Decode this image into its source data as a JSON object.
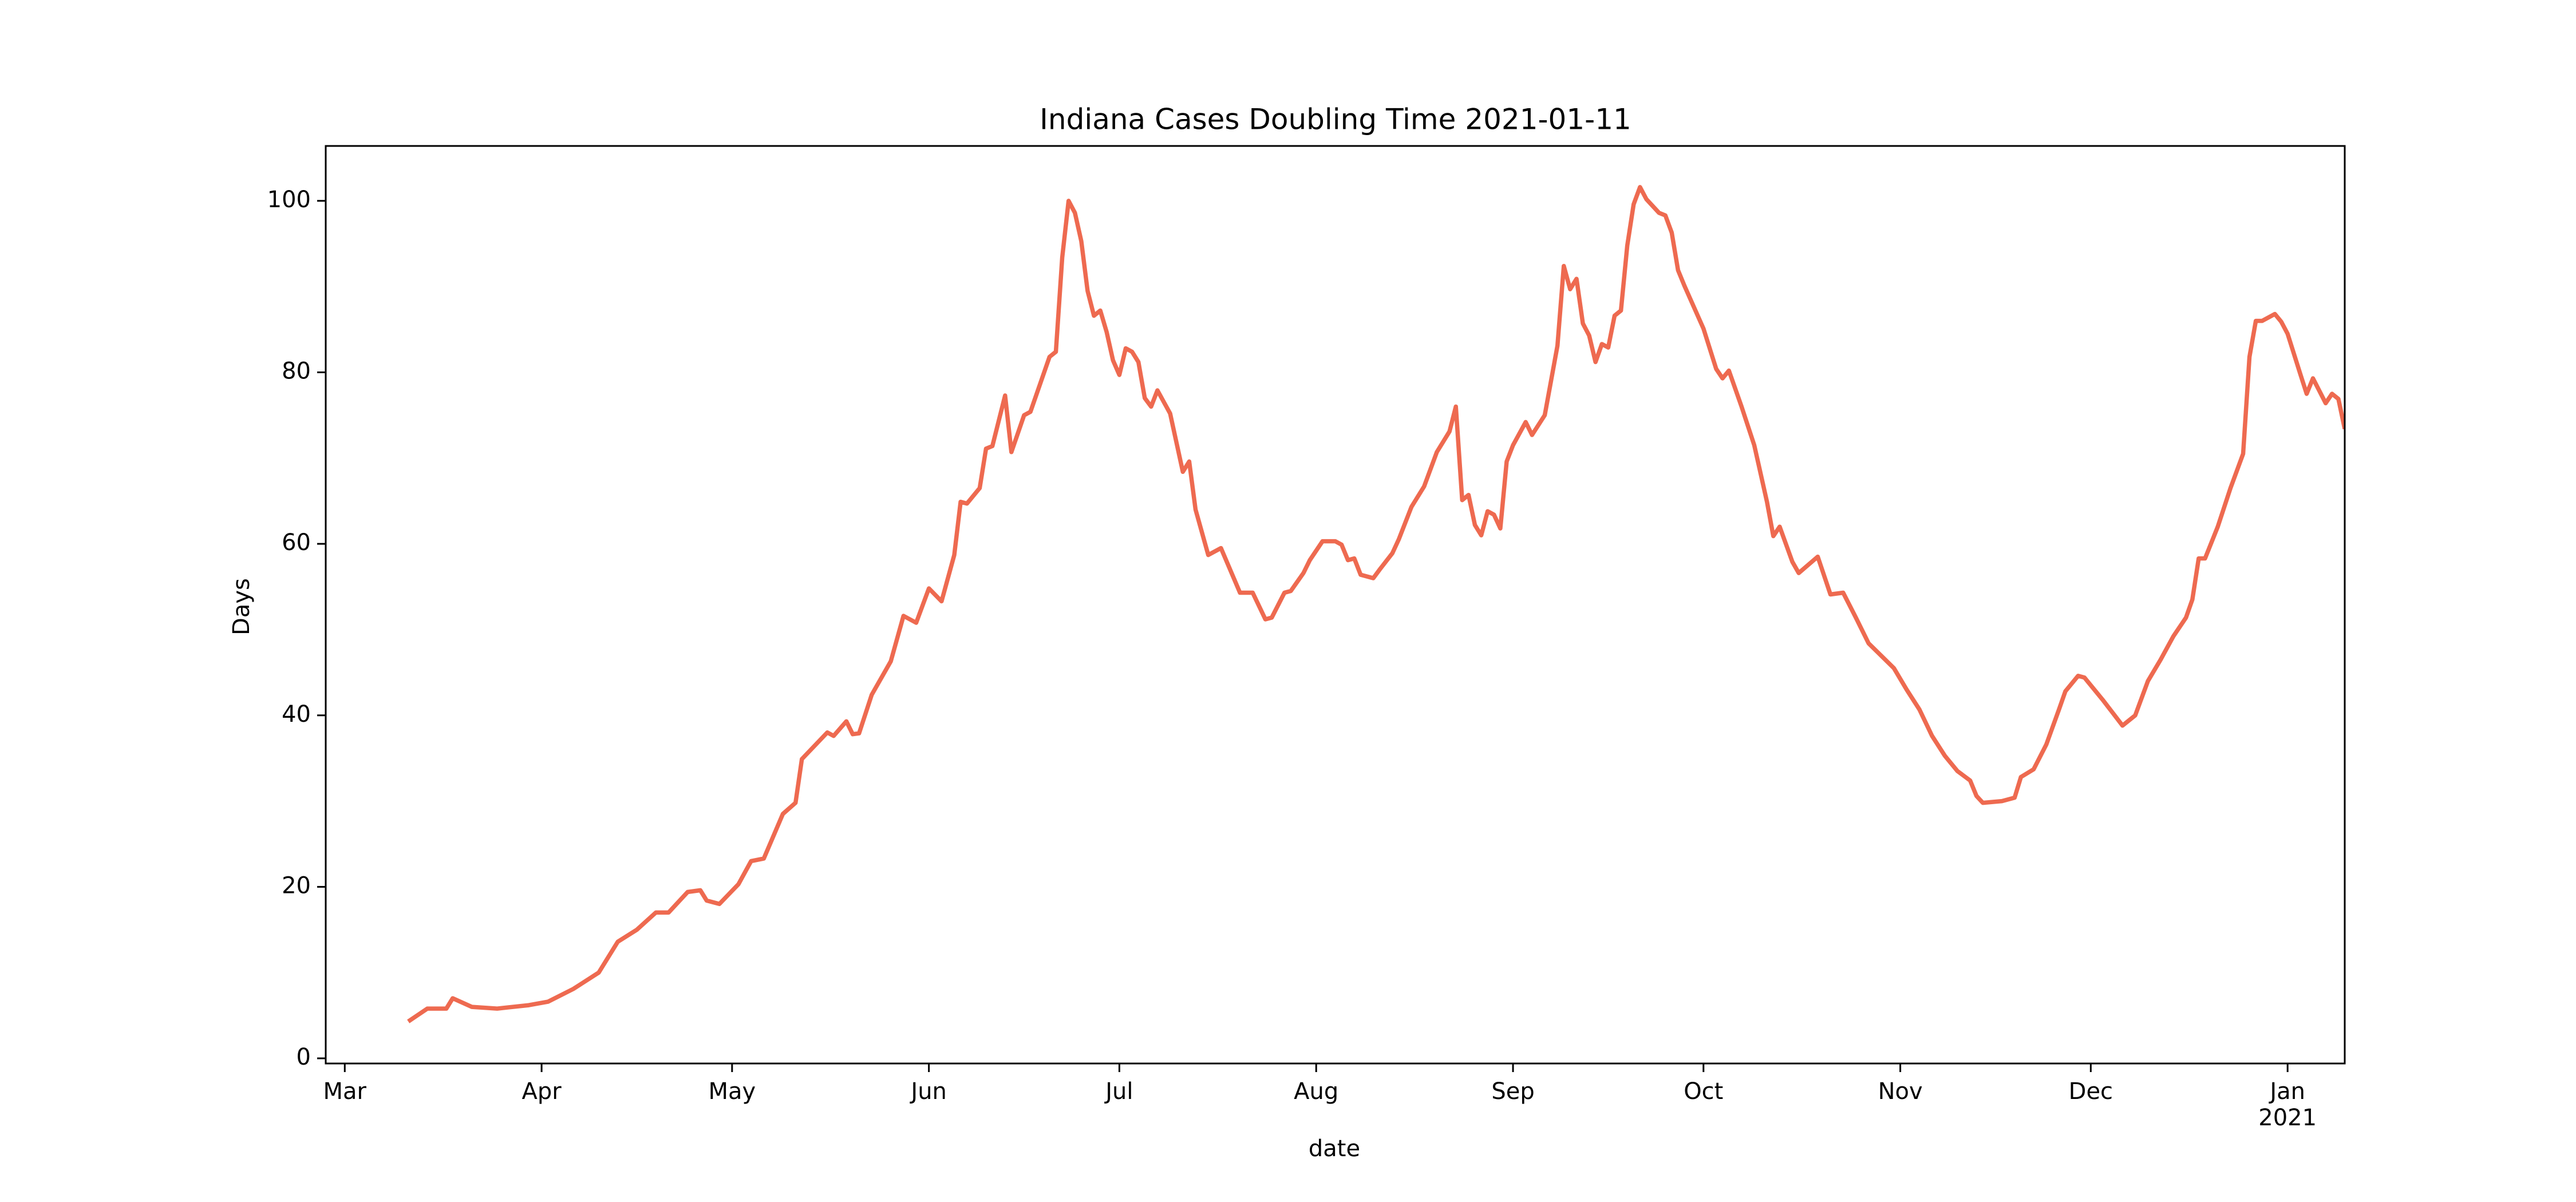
{
  "chart_data": {
    "type": "line",
    "title": "Indiana Cases Doubling Time 2021-01-11",
    "xlabel": "date",
    "ylabel": "Days",
    "xlim": [
      "2020-02-27",
      "2021-01-10"
    ],
    "ylim": [
      -0.6,
      106.4
    ],
    "yticks": [
      0,
      20,
      40,
      60,
      80,
      100
    ],
    "xticks": [
      {
        "value": "2020-03-01",
        "label": "Mar"
      },
      {
        "value": "2020-04-01",
        "label": "Apr"
      },
      {
        "value": "2020-05-01",
        "label": "May"
      },
      {
        "value": "2020-06-01",
        "label": "Jun"
      },
      {
        "value": "2020-07-01",
        "label": "Jul"
      },
      {
        "value": "2020-08-01",
        "label": "Aug"
      },
      {
        "value": "2020-09-01",
        "label": "Sep"
      },
      {
        "value": "2020-10-01",
        "label": "Oct"
      },
      {
        "value": "2020-11-01",
        "label": "Nov"
      },
      {
        "value": "2020-12-01",
        "label": "Dec"
      },
      {
        "value": "2021-01-01",
        "label": "Jan\n2021"
      }
    ],
    "grid": false,
    "series": [
      {
        "color": "#ee6a50",
        "x": [
          "2020-03-11",
          "2020-03-14",
          "2020-03-17",
          "2020-03-18",
          "2020-03-21",
          "2020-03-25",
          "2020-03-30",
          "2020-04-02",
          "2020-04-06",
          "2020-04-10",
          "2020-04-13",
          "2020-04-16",
          "2020-04-19",
          "2020-04-21",
          "2020-04-24",
          "2020-04-26",
          "2020-04-27",
          "2020-04-29",
          "2020-05-02",
          "2020-05-04",
          "2020-05-06",
          "2020-05-09",
          "2020-05-11",
          "2020-05-12",
          "2020-05-16",
          "2020-05-17",
          "2020-05-19",
          "2020-05-20",
          "2020-05-21",
          "2020-05-23",
          "2020-05-26",
          "2020-05-28",
          "2020-05-30",
          "2020-06-01",
          "2020-06-03",
          "2020-06-05",
          "2020-06-06",
          "2020-06-07",
          "2020-06-09",
          "2020-06-10",
          "2020-06-11",
          "2020-06-13",
          "2020-06-14",
          "2020-06-16",
          "2020-06-17",
          "2020-06-20",
          "2020-06-21",
          "2020-06-22",
          "2020-06-23",
          "2020-06-24",
          "2020-06-25",
          "2020-06-26",
          "2020-06-27",
          "2020-06-28",
          "2020-06-29",
          "2020-06-30",
          "2020-07-01",
          "2020-07-02",
          "2020-07-03",
          "2020-07-04",
          "2020-07-05",
          "2020-07-06",
          "2020-07-07",
          "2020-07-09",
          "2020-07-11",
          "2020-07-12",
          "2020-07-13",
          "2020-07-15",
          "2020-07-17",
          "2020-07-20",
          "2020-07-22",
          "2020-07-24",
          "2020-07-25",
          "2020-07-27",
          "2020-07-28",
          "2020-07-30",
          "2020-07-31",
          "2020-08-02",
          "2020-08-04",
          "2020-08-05",
          "2020-08-06",
          "2020-08-07",
          "2020-08-08",
          "2020-08-10",
          "2020-08-11",
          "2020-08-13",
          "2020-08-14",
          "2020-08-16",
          "2020-08-18",
          "2020-08-20",
          "2020-08-22",
          "2020-08-23",
          "2020-08-24",
          "2020-08-25",
          "2020-08-26",
          "2020-08-27",
          "2020-08-28",
          "2020-08-29",
          "2020-08-30",
          "2020-08-31",
          "2020-09-01",
          "2020-09-03",
          "2020-09-04",
          "2020-09-06",
          "2020-09-08",
          "2020-09-09",
          "2020-09-10",
          "2020-09-11",
          "2020-09-12",
          "2020-09-13",
          "2020-09-14",
          "2020-09-15",
          "2020-09-16",
          "2020-09-17",
          "2020-09-18",
          "2020-09-19",
          "2020-09-20",
          "2020-09-21",
          "2020-09-22",
          "2020-09-24",
          "2020-09-25",
          "2020-09-26",
          "2020-09-27",
          "2020-09-28",
          "2020-10-01",
          "2020-10-03",
          "2020-10-04",
          "2020-10-05",
          "2020-10-07",
          "2020-10-09",
          "2020-10-11",
          "2020-10-12",
          "2020-10-13",
          "2020-10-15",
          "2020-10-16",
          "2020-10-19",
          "2020-10-21",
          "2020-10-23",
          "2020-10-25",
          "2020-10-27",
          "2020-10-31",
          "2020-11-02",
          "2020-11-04",
          "2020-11-06",
          "2020-11-08",
          "2020-11-10",
          "2020-11-12",
          "2020-11-13",
          "2020-11-14",
          "2020-11-17",
          "2020-11-19",
          "2020-11-20",
          "2020-11-22",
          "2020-11-24",
          "2020-11-26",
          "2020-11-27",
          "2020-11-29",
          "2020-11-30",
          "2020-12-03",
          "2020-12-06",
          "2020-12-08",
          "2020-12-10",
          "2020-12-12",
          "2020-12-14",
          "2020-12-16",
          "2020-12-17",
          "2020-12-18",
          "2020-12-19",
          "2020-12-21",
          "2020-12-23",
          "2020-12-25",
          "2020-12-26",
          "2020-12-27",
          "2020-12-28",
          "2020-12-30",
          "2020-12-31",
          "2021-01-01",
          "2021-01-03",
          "2021-01-04",
          "2021-01-05",
          "2021-01-07",
          "2021-01-08",
          "2021-01-09",
          "2021-01-10"
        ],
        "values": [
          4.3,
          5.8,
          5.8,
          7.0,
          6.0,
          5.8,
          6.2,
          6.6,
          8.1,
          10.0,
          13.6,
          15.0,
          17.0,
          17.0,
          19.4,
          19.6,
          18.4,
          18.0,
          20.3,
          23.0,
          23.3,
          28.5,
          29.8,
          34.9,
          38.0,
          37.6,
          39.3,
          37.8,
          37.9,
          42.4,
          46.3,
          51.6,
          50.8,
          54.8,
          53.3,
          58.7,
          64.9,
          64.7,
          66.5,
          71.1,
          71.4,
          77.3,
          70.7,
          75.0,
          75.4,
          81.8,
          82.4,
          93.4,
          100.0,
          98.6,
          95.3,
          89.5,
          86.6,
          87.2,
          84.7,
          81.4,
          79.7,
          82.8,
          82.4,
          81.2,
          77.0,
          76.0,
          77.9,
          75.2,
          68.4,
          69.6,
          64.0,
          58.7,
          59.5,
          54.3,
          54.3,
          51.2,
          51.4,
          54.3,
          54.5,
          56.6,
          58.1,
          60.3,
          60.3,
          59.9,
          58.1,
          58.3,
          56.4,
          56.0,
          57.0,
          58.9,
          60.5,
          64.3,
          66.7,
          70.7,
          73.1,
          76.0,
          65.1,
          65.7,
          62.2,
          61.0,
          63.8,
          63.4,
          61.8,
          69.6,
          71.5,
          74.2,
          72.7,
          75.0,
          83.1,
          92.4,
          89.7,
          90.9,
          85.7,
          84.3,
          81.2,
          83.3,
          82.9,
          86.6,
          87.2,
          94.8,
          99.6,
          101.6,
          100.2,
          98.6,
          98.3,
          96.3,
          91.9,
          90.1,
          85.1,
          80.4,
          79.3,
          80.2,
          76.0,
          71.5,
          64.9,
          60.9,
          62.0,
          57.9,
          56.6,
          58.5,
          54.1,
          54.3,
          51.4,
          48.4,
          45.5,
          43.0,
          40.7,
          37.6,
          35.3,
          33.5,
          32.4,
          30.6,
          29.8,
          30.0,
          30.4,
          32.8,
          33.7,
          36.6,
          40.7,
          42.8,
          44.6,
          44.4,
          41.7,
          38.8,
          40.0,
          44.0,
          46.5,
          49.2,
          51.4,
          53.5,
          58.3,
          58.3,
          62.0,
          66.5,
          70.5,
          81.8,
          86.0,
          86.0,
          86.8,
          85.9,
          84.5,
          79.8,
          77.5,
          79.3,
          76.4,
          77.5,
          76.9,
          73.4
        ]
      }
    ]
  }
}
